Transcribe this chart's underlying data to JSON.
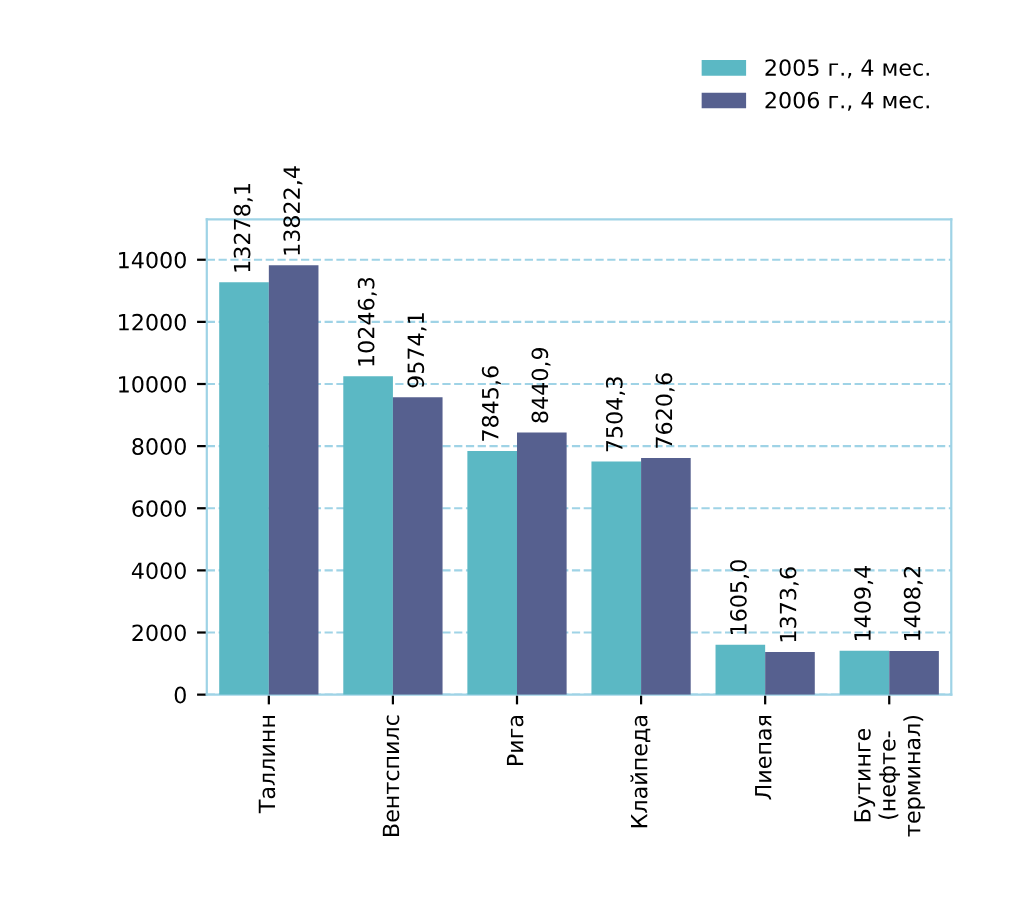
{
  "chart_data": {
    "type": "bar",
    "categories": [
      "Таллинн",
      "Вентспилс",
      "Рига",
      "Клайпеда",
      "Лиепая",
      "Бутинге\n(нефте-\nтерминал)"
    ],
    "series": [
      {
        "name": "2005 г., 4 мес.",
        "color": "#5bb8c4",
        "values": [
          13278.1,
          10246.3,
          7845.6,
          7504.3,
          1605.0,
          1409.4
        ],
        "value_labels": [
          "13278,1",
          "10246,3",
          "7845,6",
          "7504,3",
          "1605,0",
          "1409,4"
        ]
      },
      {
        "name": "2006 г., 4 мес.",
        "color": "#56608f",
        "values": [
          13822.4,
          9574.1,
          8440.9,
          7620.6,
          1373.6,
          1408.2
        ],
        "value_labels": [
          "13822,4",
          "9574,1",
          "8440,9",
          "7620,6",
          "1373,6",
          "1408,2"
        ]
      }
    ],
    "ylim": [
      0,
      15300
    ],
    "yticks": [
      0,
      2000,
      4000,
      6000,
      8000,
      10000,
      12000,
      14000
    ],
    "grid": "y",
    "legend": "top right"
  }
}
